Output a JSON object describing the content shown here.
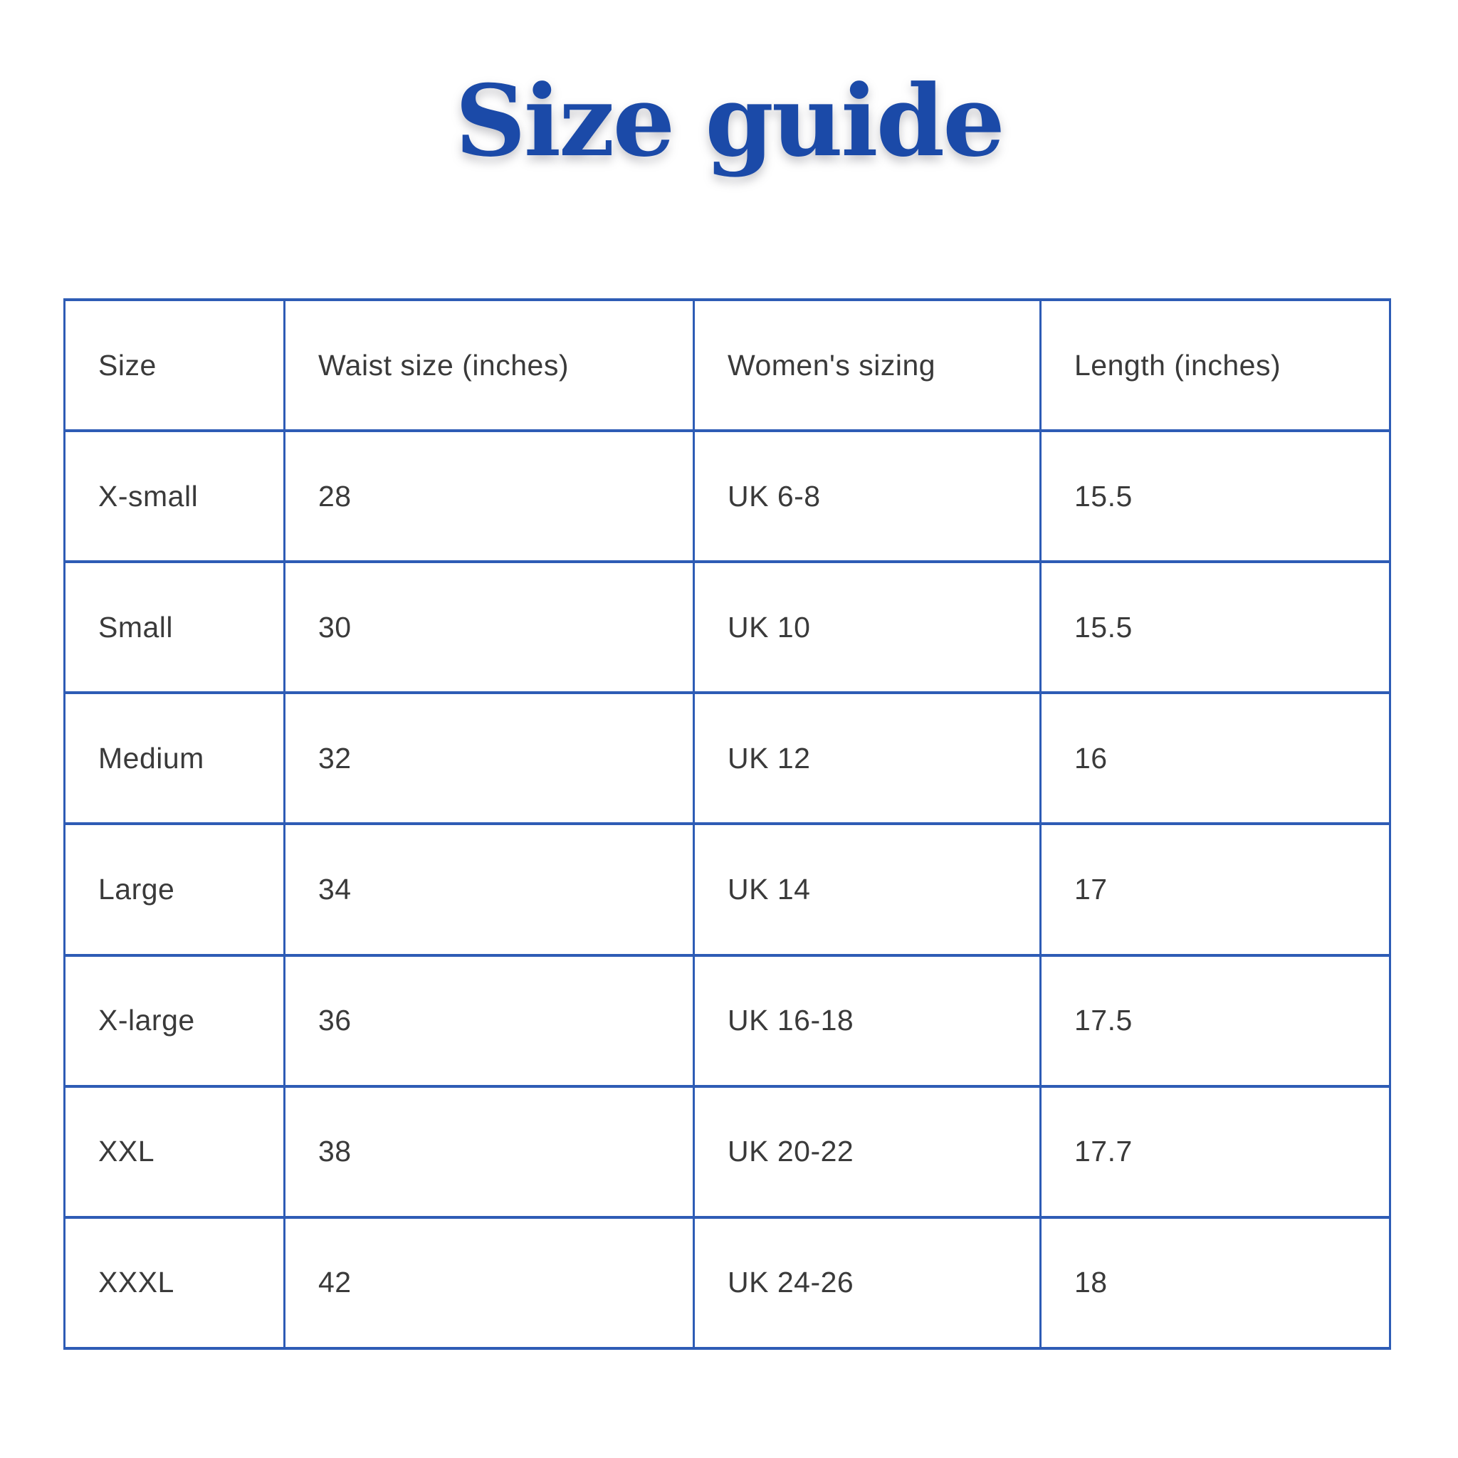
{
  "title": "Size guide",
  "colors": {
    "title_blue": "#1b4aa8",
    "table_border_blue": "#2e5cb5",
    "cell_text": "#3a3a3a",
    "background": "#ffffff"
  },
  "chart_data": {
    "type": "table",
    "title": "Size guide",
    "columns": [
      "Size",
      "Waist size (inches)",
      "Women's sizing",
      "Length (inches)"
    ],
    "rows": [
      [
        "X-small",
        "28",
        "UK 6-8",
        "15.5"
      ],
      [
        "Small",
        "30",
        "UK 10",
        "15.5"
      ],
      [
        "Medium",
        "32",
        "UK 12",
        "16"
      ],
      [
        "Large",
        "34",
        "UK 14",
        "17"
      ],
      [
        "X-large",
        "36",
        "UK 16-18",
        "17.5"
      ],
      [
        "XXL",
        "38",
        "UK 20-22",
        "17.7"
      ],
      [
        "XXXL",
        "42",
        "UK 24-26",
        "18"
      ]
    ]
  }
}
